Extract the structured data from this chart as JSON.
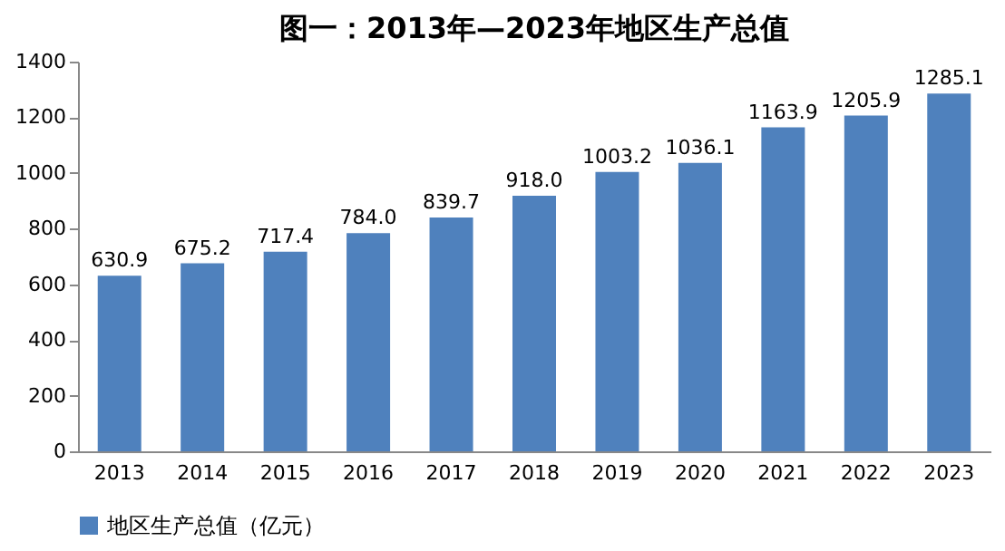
{
  "chart_data": {
    "type": "bar",
    "title": "图一：2013年—2023年地区生产总值",
    "categories": [
      "2013",
      "2014",
      "2015",
      "2016",
      "2017",
      "2018",
      "2019",
      "2020",
      "2021",
      "2022",
      "2023"
    ],
    "series": [
      {
        "name": "地区生产总值（亿元）",
        "color": "#4f81bd",
        "values": [
          630.9,
          675.2,
          717.4,
          784.0,
          839.7,
          918.0,
          1003.2,
          1036.1,
          1163.9,
          1205.9,
          1285.1
        ]
      }
    ],
    "value_labels": [
      "630.9",
      "675.2",
      "717.4",
      "784.0",
      "839.7",
      "918.0",
      "1003.2",
      "1036.1",
      "1163.9",
      "1205.9",
      "1285.1"
    ],
    "ylim": [
      0,
      1400
    ],
    "yticks": [
      0,
      200,
      400,
      600,
      800,
      1000,
      1200,
      1400
    ],
    "legend": "bottom",
    "grid": false
  }
}
